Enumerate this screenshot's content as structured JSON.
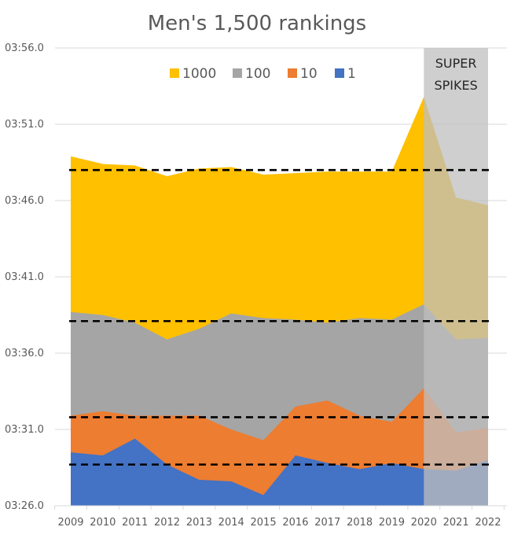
{
  "chart_data": {
    "type": "area",
    "title": "Men's 1,500 rankings",
    "xlabel": "",
    "ylabel": "",
    "x": [
      "2009",
      "2010",
      "2011",
      "2012",
      "2013",
      "2014",
      "2015",
      "2016",
      "2017",
      "2018",
      "2019",
      "2020",
      "2021",
      "2022"
    ],
    "y_unit": "seconds after 3:00",
    "ylim": [
      206,
      236
    ],
    "y_ticks": [
      {
        "value": 236,
        "label": "03:56.0"
      },
      {
        "value": 231,
        "label": "03:51.0"
      },
      {
        "value": 226,
        "label": "03:46.0"
      },
      {
        "value": 221,
        "label": "03:41.0"
      },
      {
        "value": 216,
        "label": "03:36.0"
      },
      {
        "value": 211,
        "label": "03:31.0"
      },
      {
        "value": 206,
        "label": "03:26.0"
      }
    ],
    "grid": true,
    "legend_position": "top-center",
    "series": [
      {
        "name": "1000",
        "color": "#FFC000",
        "values": [
          228.9,
          228.4,
          228.3,
          227.6,
          228.1,
          228.2,
          227.7,
          227.8,
          227.9,
          227.9,
          227.9,
          232.8,
          226.2,
          225.7
        ]
      },
      {
        "name": "100",
        "color": "#A5A5A5",
        "values": [
          218.7,
          218.5,
          218.0,
          216.9,
          217.6,
          218.6,
          218.3,
          218.2,
          218.0,
          218.3,
          218.2,
          219.2,
          216.9,
          217.0
        ]
      },
      {
        "name": "10",
        "color": "#ED7D31",
        "values": [
          211.9,
          212.2,
          211.9,
          211.9,
          211.9,
          211.0,
          210.3,
          212.5,
          212.9,
          211.9,
          211.5,
          213.7,
          210.8,
          211.1
        ]
      },
      {
        "name": "1",
        "color": "#4472C4",
        "values": [
          209.5,
          209.3,
          210.4,
          208.7,
          207.7,
          207.6,
          206.7,
          209.3,
          208.8,
          208.4,
          208.8,
          208.4,
          208.3,
          209.0
        ]
      }
    ],
    "reference_lines": [
      228.0,
      218.1,
      211.8,
      208.7
    ],
    "annotations": [
      {
        "text_lines": [
          "SUPER",
          "SPIKES"
        ],
        "x_start": "2020",
        "x_end": "2022",
        "color": "#BFBFBF"
      }
    ]
  }
}
